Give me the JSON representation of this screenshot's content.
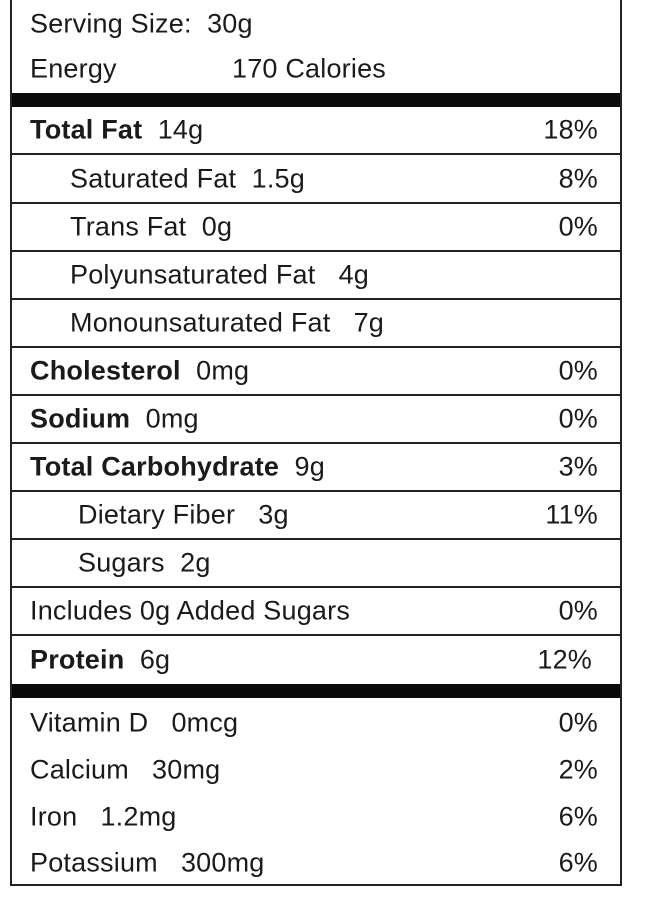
{
  "serving": {
    "label": "Serving Size:",
    "value": "30g"
  },
  "energy": {
    "label": "Energy",
    "value": "170 Calories"
  },
  "nutrients": [
    {
      "name": "Total Fat",
      "amount": "14g",
      "dv": "18%"
    },
    {
      "name": "Saturated Fat",
      "amount": "1.5g",
      "dv": "8%"
    },
    {
      "name": "Trans Fat",
      "amount": "0g",
      "dv": "0%"
    },
    {
      "name": "Polyunsaturated Fat",
      "amount": "4g",
      "dv": ""
    },
    {
      "name": "Monounsaturated Fat",
      "amount": "7g",
      "dv": ""
    },
    {
      "name": "Cholesterol",
      "amount": "0mg",
      "dv": "0%"
    },
    {
      "name": "Sodium",
      "amount": "0mg",
      "dv": "0%"
    },
    {
      "name": "Total Carbohydrate",
      "amount": "9g",
      "dv": "3%"
    },
    {
      "name": "Dietary Fiber",
      "amount": "3g",
      "dv": "11%"
    },
    {
      "name": "Sugars",
      "amount": "2g",
      "dv": ""
    },
    {
      "name": "Includes 0g Added Sugars",
      "amount": "",
      "dv": "0%"
    },
    {
      "name": "Protein",
      "amount": "6g",
      "dv": "12%"
    }
  ],
  "vitamins": [
    {
      "name": "Vitamin D",
      "amount": "0mcg",
      "dv": "0%"
    },
    {
      "name": "Calcium",
      "amount": "30mg",
      "dv": "2%"
    },
    {
      "name": "Iron",
      "amount": "1.2mg",
      "dv": "6%"
    },
    {
      "name": "Potassium",
      "amount": "300mg",
      "dv": "6%"
    }
  ]
}
